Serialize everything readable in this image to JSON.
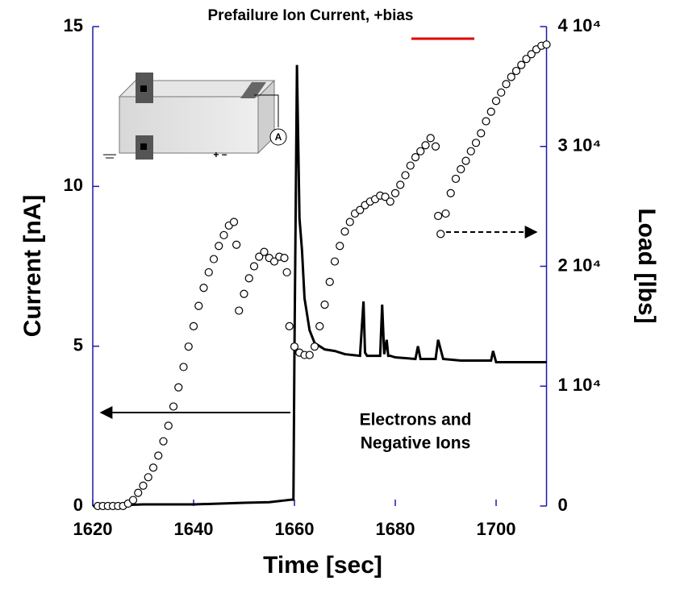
{
  "chart_data": {
    "type": "line",
    "title": "Prefailure Ion Current, +bias",
    "xlabel": "Time [sec]",
    "ylabel": "Current [nA]",
    "y2label": "Load [lbs]",
    "annotation": [
      "Electrons and",
      "Negative Ions"
    ],
    "inset_labels": {
      "meter": "A",
      "polarity": "+ −"
    },
    "xlim": [
      1620,
      1710
    ],
    "xticks": [
      1620,
      1640,
      1660,
      1680,
      1700
    ],
    "ylim": [
      0,
      15
    ],
    "yticks": [
      0,
      5,
      10,
      15
    ],
    "y2lim": [
      0,
      40000
    ],
    "y2ticks": [
      0,
      {
        "value": 10000,
        "label": "1 10⁴"
      },
      {
        "value": 20000,
        "label": "2 10⁴"
      },
      {
        "value": 30000,
        "label": "3 10⁴"
      },
      {
        "value": 40000,
        "label": "4 10⁴"
      }
    ],
    "axis_color": "#1a1aa8",
    "series": [
      {
        "style": "line",
        "color": "#000000",
        "x": [
          1620,
          1630,
          1640,
          1650,
          1655,
          1659.5,
          1659.8,
          1660,
          1660.5,
          1661,
          1661.5,
          1662,
          1663,
          1664,
          1666,
          1668,
          1670,
          1673,
          1673.7,
          1674,
          1674.4,
          1675,
          1677,
          1677.4,
          1677.8,
          1678.3,
          1678.6,
          1679,
          1680,
          1684,
          1684.5,
          1685,
          1688,
          1688.5,
          1689.5,
          1693,
          1699,
          1699.4,
          1700,
          1710
        ],
        "values": [
          0,
          0.05,
          0.05,
          0.1,
          0.12,
          0.2,
          0.2,
          4.8,
          13.8,
          9,
          8,
          6.5,
          5.5,
          5.1,
          4.9,
          4.85,
          4.75,
          4.7,
          6.4,
          4.8,
          4.7,
          4.7,
          4.7,
          6.3,
          4.75,
          5.2,
          4.7,
          4.7,
          4.65,
          4.6,
          5.0,
          4.6,
          4.6,
          5.2,
          4.6,
          4.55,
          4.55,
          4.85,
          4.5,
          4.5
        ]
      },
      {
        "style": "markers",
        "color": "#000000",
        "axis": "y2",
        "x": [
          1621,
          1622,
          1623,
          1624,
          1625,
          1626,
          1627,
          1628,
          1629,
          1630,
          1631,
          1632,
          1633,
          1634,
          1635,
          1636,
          1637,
          1638,
          1639,
          1640,
          1641,
          1642,
          1643,
          1644,
          1645,
          1646,
          1647,
          1648,
          1648.5,
          1649,
          1650,
          1651,
          1652,
          1653,
          1654,
          1655,
          1656,
          1657,
          1658,
          1658.5,
          1659,
          1660,
          1661,
          1662,
          1663,
          1664,
          1665,
          1666,
          1667,
          1668,
          1669,
          1670,
          1671,
          1672,
          1673,
          1674,
          1675,
          1676,
          1677,
          1678,
          1679,
          1680,
          1681,
          1682,
          1683,
          1684,
          1685,
          1686,
          1687,
          1688,
          1688.5,
          1689,
          1690,
          1691,
          1692,
          1693,
          1694,
          1695,
          1696,
          1697,
          1698,
          1699,
          1700,
          1701,
          1702,
          1703,
          1704,
          1705,
          1706,
          1707,
          1708,
          1709,
          1710
        ],
        "values": [
          0,
          0,
          0,
          0,
          0,
          0,
          200,
          500,
          1100,
          1700,
          2400,
          3200,
          4200,
          5400,
          6700,
          8300,
          9900,
          11600,
          13300,
          15000,
          16700,
          18200,
          19500,
          20600,
          21700,
          22600,
          23400,
          23700,
          21800,
          16300,
          17700,
          19000,
          20000,
          20800,
          21200,
          20700,
          20400,
          20800,
          20700,
          19500,
          15000,
          13300,
          12800,
          12600,
          12600,
          13300,
          15000,
          16800,
          18700,
          20400,
          21700,
          22900,
          23700,
          24400,
          24700,
          25100,
          25400,
          25600,
          25900,
          25800,
          25400,
          26100,
          26800,
          27600,
          28400,
          29100,
          29600,
          30100,
          30700,
          30000,
          24200,
          22700,
          24400,
          26100,
          27300,
          28100,
          28800,
          29600,
          30300,
          31100,
          32100,
          32900,
          33800,
          34500,
          35200,
          35800,
          36300,
          36800,
          37300,
          37700,
          38100,
          38400,
          38500
        ]
      }
    ]
  }
}
